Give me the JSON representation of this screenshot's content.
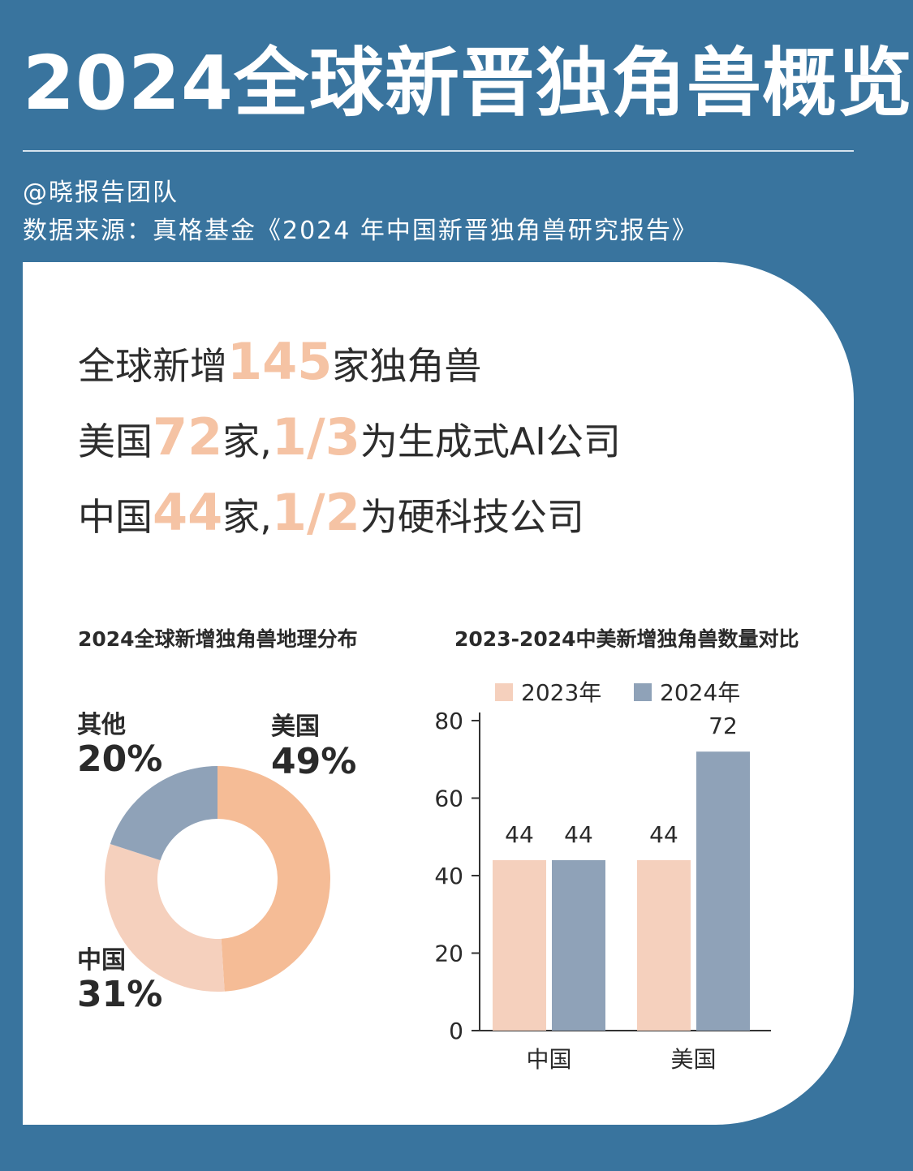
{
  "header": {
    "title": "2024全球新晋独角兽概览",
    "author": "@晓报告团队",
    "source": "数据来源：真格基金《2024 年中国新晋独角兽研究报告》"
  },
  "highlights": [
    {
      "prefix": "全球新增",
      "num1": "145",
      "mid": "家独角兽",
      "num2": "",
      "suffix": ""
    },
    {
      "prefix": "美国",
      "num1": "72",
      "mid": "家,",
      "num2": "1/3",
      "suffix": "为生成式AI公司"
    },
    {
      "prefix": "中国",
      "num1": "44",
      "mid": "家,",
      "num2": "1/2",
      "suffix": "为硬科技公司"
    }
  ],
  "colors": {
    "background": "#39749e",
    "accent": "#f5c3a4",
    "usa": "#f5bc96",
    "china": "#f5d0bd",
    "other": "#8fa2b8",
    "bar2023": "#f5d0bd",
    "bar2024": "#8fa2b8"
  },
  "chart_data": [
    {
      "type": "pie",
      "title": "2024全球新增独角兽地理分布",
      "slices": [
        {
          "label": "美国",
          "value": 49,
          "value_label": "49%",
          "color": "#f5bc96"
        },
        {
          "label": "中国",
          "value": 31,
          "value_label": "31%",
          "color": "#f5d0bd"
        },
        {
          "label": "其他",
          "value": 20,
          "value_label": "20%",
          "color": "#8fa2b8"
        }
      ],
      "donut": true,
      "start_angle": "12 o'clock, clockwise"
    },
    {
      "type": "bar",
      "title": "2023-2024中美新增独角兽数量对比",
      "categories": [
        "中国",
        "美国"
      ],
      "series": [
        {
          "name": "2023年",
          "values": [
            44,
            44
          ],
          "color": "#f5d0bd"
        },
        {
          "name": "2024年",
          "values": [
            44,
            72
          ],
          "color": "#8fa2b8"
        }
      ],
      "ylim": [
        0,
        80
      ],
      "yticks": [
        0,
        20,
        40,
        60,
        80
      ],
      "legend": "top",
      "grid": false,
      "data_labels": true
    }
  ]
}
